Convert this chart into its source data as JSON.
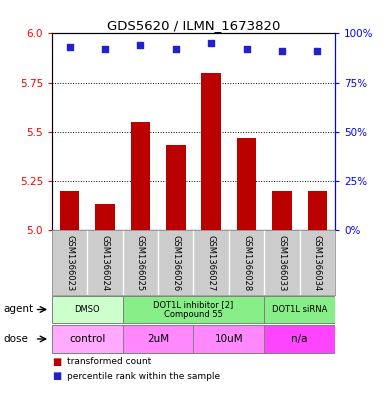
{
  "title": "GDS5620 / ILMN_1673820",
  "samples": [
    "GSM1366023",
    "GSM1366024",
    "GSM1366025",
    "GSM1366026",
    "GSM1366027",
    "GSM1366028",
    "GSM1366033",
    "GSM1366034"
  ],
  "bar_values": [
    5.2,
    5.13,
    5.55,
    5.43,
    5.8,
    5.47,
    5.2,
    5.2
  ],
  "percentile_values": [
    93,
    92,
    94,
    92,
    95,
    92,
    91,
    91
  ],
  "ylim": [
    5.0,
    6.0
  ],
  "yticks_left": [
    5.0,
    5.25,
    5.5,
    5.75,
    6.0
  ],
  "yticks_right": [
    0,
    25,
    50,
    75,
    100
  ],
  "bar_color": "#bb0000",
  "dot_color": "#2222cc",
  "agent_groups": [
    {
      "label": "DMSO",
      "cols": [
        0,
        1
      ],
      "color": "#ccffcc"
    },
    {
      "label": "DOT1L inhibitor [2]\nCompound 55",
      "cols": [
        2,
        3,
        4,
        5
      ],
      "color": "#88ee88"
    },
    {
      "label": "DOT1L siRNA",
      "cols": [
        6,
        7
      ],
      "color": "#88ee88"
    }
  ],
  "dose_groups": [
    {
      "label": "control",
      "cols": [
        0,
        1
      ],
      "color": "#ffaaff"
    },
    {
      "label": "2uM",
      "cols": [
        2,
        3
      ],
      "color": "#ff88ff"
    },
    {
      "label": "10uM",
      "cols": [
        4,
        5
      ],
      "color": "#ff88ff"
    },
    {
      "label": "n/a",
      "cols": [
        6,
        7
      ],
      "color": "#ff44ff"
    }
  ],
  "legend_items": [
    {
      "label": "transformed count",
      "color": "#bb0000"
    },
    {
      "label": "percentile rank within the sample",
      "color": "#2222cc"
    }
  ],
  "background_color": "#ffffff",
  "sample_box_color": "#cccccc"
}
